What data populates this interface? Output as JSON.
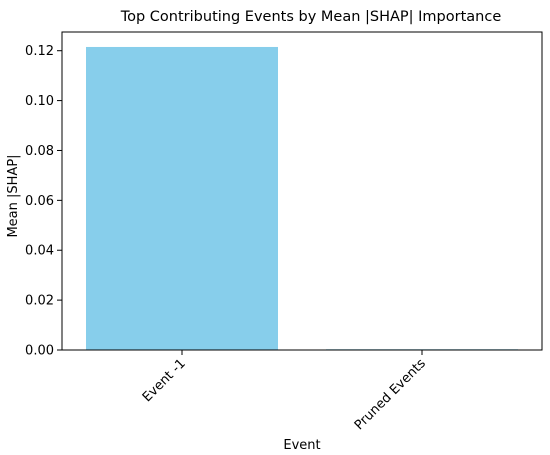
{
  "chart_data": {
    "type": "bar",
    "title": "Top Contributing Events by Mean |SHAP| Importance",
    "xlabel": "Event",
    "ylabel": "Mean |SHAP|",
    "categories": [
      "Event -1",
      "Pruned Events"
    ],
    "values": [
      0.1215,
      0.0003
    ],
    "ylim": [
      0,
      0.1275
    ],
    "yticks": [
      0,
      0.02,
      0.04,
      0.06,
      0.08,
      0.1,
      0.12
    ],
    "ytick_labels": [
      "0.00",
      "0.02",
      "0.04",
      "0.06",
      "0.08",
      "0.10",
      "0.12"
    ],
    "bar_color": "#87CEEB",
    "grid": false,
    "legend": false
  }
}
